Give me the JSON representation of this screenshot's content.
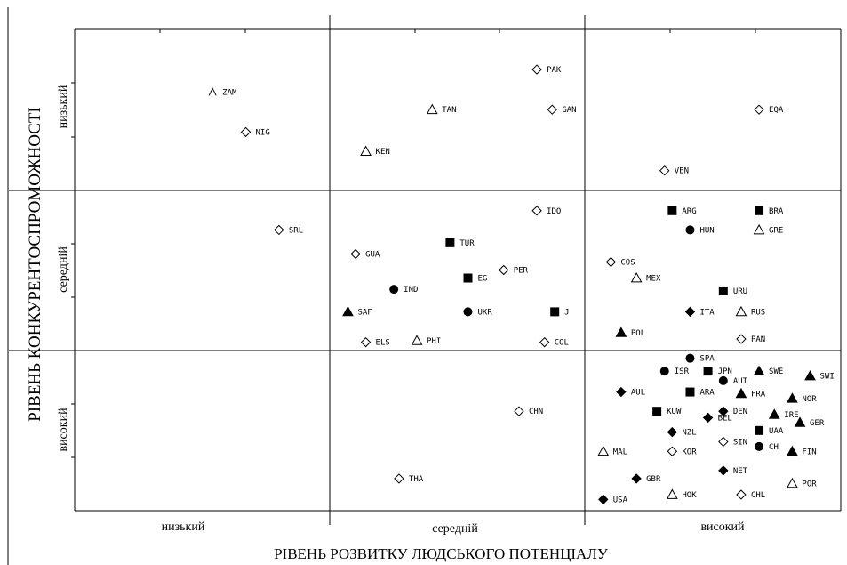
{
  "chart_data": {
    "type": "scatter",
    "xlabel": "РІВЕНЬ РОЗВИТКУ ЛЮДСЬКОГО ПОТЕНЦІАЛУ",
    "ylabel": "РІВЕНЬ КОНКУРЕНТОСПРОМОЖНОСТІ",
    "x_categories": [
      "низький",
      "середній",
      "високий"
    ],
    "y_categories": [
      "низький",
      "середній",
      "високий"
    ],
    "grid": true,
    "colors": {
      "ink": "#000000",
      "background": "#ffffff"
    },
    "marker_legend": {
      "diamond_open": "open-diamond",
      "triangle_open": "open-triangle",
      "square": "filled-square",
      "circle": "filled-circle",
      "triangle": "filled-triangle",
      "diamond": "filled-diamond"
    },
    "points": [
      {
        "label": "ZAM",
        "x": 0.54,
        "y": 2.61,
        "marker": "caret"
      },
      {
        "label": "NIG",
        "x": 0.67,
        "y": 2.36,
        "marker": "diamond_open"
      },
      {
        "label": "PAK",
        "x": 1.81,
        "y": 2.75,
        "marker": "diamond_open"
      },
      {
        "label": "TAN",
        "x": 1.4,
        "y": 2.5,
        "marker": "triangle_open"
      },
      {
        "label": "GAN",
        "x": 1.87,
        "y": 2.5,
        "marker": "diamond_open"
      },
      {
        "label": "EQA",
        "x": 2.68,
        "y": 2.5,
        "marker": "diamond_open"
      },
      {
        "label": "KEN",
        "x": 1.14,
        "y": 2.24,
        "marker": "triangle_open"
      },
      {
        "label": "VEN",
        "x": 2.31,
        "y": 2.12,
        "marker": "diamond_open"
      },
      {
        "label": "SRL",
        "x": 0.8,
        "y": 1.75,
        "marker": "diamond_open"
      },
      {
        "label": "IDO",
        "x": 1.81,
        "y": 1.87,
        "marker": "diamond_open"
      },
      {
        "label": "ARG",
        "x": 2.34,
        "y": 1.87,
        "marker": "square"
      },
      {
        "label": "BRA",
        "x": 2.68,
        "y": 1.87,
        "marker": "square"
      },
      {
        "label": "HUN",
        "x": 2.41,
        "y": 1.75,
        "marker": "circle"
      },
      {
        "label": "GRE",
        "x": 2.68,
        "y": 1.75,
        "marker": "triangle_open"
      },
      {
        "label": "TUR",
        "x": 1.47,
        "y": 1.67,
        "marker": "square"
      },
      {
        "label": "GUA",
        "x": 1.1,
        "y": 1.6,
        "marker": "diamond_open"
      },
      {
        "label": "COS",
        "x": 2.1,
        "y": 1.55,
        "marker": "diamond_open"
      },
      {
        "label": "PER",
        "x": 1.68,
        "y": 1.5,
        "marker": "diamond_open"
      },
      {
        "label": "EG",
        "x": 1.54,
        "y": 1.45,
        "marker": "square"
      },
      {
        "label": "MEX",
        "x": 2.2,
        "y": 1.45,
        "marker": "triangle_open"
      },
      {
        "label": "IND",
        "x": 1.25,
        "y": 1.38,
        "marker": "circle"
      },
      {
        "label": "URU",
        "x": 2.54,
        "y": 1.37,
        "marker": "square"
      },
      {
        "label": "SAF",
        "x": 1.07,
        "y": 1.24,
        "marker": "triangle"
      },
      {
        "label": "UKR",
        "x": 1.54,
        "y": 1.24,
        "marker": "circle"
      },
      {
        "label": "J",
        "x": 1.88,
        "y": 1.24,
        "marker": "square"
      },
      {
        "label": "ITA",
        "x": 2.41,
        "y": 1.24,
        "marker": "diamond"
      },
      {
        "label": "RUS",
        "x": 2.61,
        "y": 1.24,
        "marker": "triangle_open"
      },
      {
        "label": "POL",
        "x": 2.14,
        "y": 1.11,
        "marker": "triangle"
      },
      {
        "label": "ELS",
        "x": 1.14,
        "y": 1.05,
        "marker": "diamond_open"
      },
      {
        "label": "PHI",
        "x": 1.34,
        "y": 1.06,
        "marker": "triangle_open"
      },
      {
        "label": "COL",
        "x": 1.84,
        "y": 1.05,
        "marker": "diamond_open"
      },
      {
        "label": "PAN",
        "x": 2.61,
        "y": 1.07,
        "marker": "diamond_open"
      },
      {
        "label": "SPA",
        "x": 2.41,
        "y": 0.95,
        "marker": "circle"
      },
      {
        "label": "ISR",
        "x": 2.31,
        "y": 0.87,
        "marker": "circle"
      },
      {
        "label": "JPN",
        "x": 2.48,
        "y": 0.87,
        "marker": "square"
      },
      {
        "label": "SWE",
        "x": 2.68,
        "y": 0.87,
        "marker": "triangle"
      },
      {
        "label": "SWI",
        "x": 2.88,
        "y": 0.84,
        "marker": "triangle"
      },
      {
        "label": "AUT",
        "x": 2.54,
        "y": 0.81,
        "marker": "circle"
      },
      {
        "label": "AUL",
        "x": 2.14,
        "y": 0.74,
        "marker": "diamond"
      },
      {
        "label": "ARA",
        "x": 2.41,
        "y": 0.74,
        "marker": "square"
      },
      {
        "label": "FRA",
        "x": 2.61,
        "y": 0.73,
        "marker": "triangle"
      },
      {
        "label": "NOR",
        "x": 2.81,
        "y": 0.7,
        "marker": "triangle"
      },
      {
        "label": "CHN",
        "x": 1.74,
        "y": 0.62,
        "marker": "diamond_open"
      },
      {
        "label": "KUW",
        "x": 2.28,
        "y": 0.62,
        "marker": "square"
      },
      {
        "label": "DEN",
        "x": 2.54,
        "y": 0.62,
        "marker": "diamond"
      },
      {
        "label": "IRE",
        "x": 2.74,
        "y": 0.6,
        "marker": "triangle"
      },
      {
        "label": "BEL",
        "x": 2.48,
        "y": 0.58,
        "marker": "diamond"
      },
      {
        "label": "GER",
        "x": 2.84,
        "y": 0.55,
        "marker": "triangle"
      },
      {
        "label": "NZL",
        "x": 2.34,
        "y": 0.49,
        "marker": "diamond"
      },
      {
        "label": "UAA",
        "x": 2.68,
        "y": 0.5,
        "marker": "square"
      },
      {
        "label": "SIN",
        "x": 2.54,
        "y": 0.43,
        "marker": "diamond_open"
      },
      {
        "label": "CH",
        "x": 2.68,
        "y": 0.4,
        "marker": "circle"
      },
      {
        "label": "FIN",
        "x": 2.81,
        "y": 0.37,
        "marker": "triangle"
      },
      {
        "label": "MAL",
        "x": 2.07,
        "y": 0.37,
        "marker": "triangle_open"
      },
      {
        "label": "KOR",
        "x": 2.34,
        "y": 0.37,
        "marker": "diamond_open"
      },
      {
        "label": "NET",
        "x": 2.54,
        "y": 0.25,
        "marker": "diamond"
      },
      {
        "label": "THA",
        "x": 1.27,
        "y": 0.2,
        "marker": "diamond_open"
      },
      {
        "label": "GBR",
        "x": 2.2,
        "y": 0.2,
        "marker": "diamond"
      },
      {
        "label": "POR",
        "x": 2.81,
        "y": 0.17,
        "marker": "triangle_open"
      },
      {
        "label": "HOK",
        "x": 2.34,
        "y": 0.1,
        "marker": "triangle_open"
      },
      {
        "label": "CHL",
        "x": 2.61,
        "y": 0.1,
        "marker": "diamond_open"
      },
      {
        "label": "USA",
        "x": 2.07,
        "y": 0.07,
        "marker": "diamond"
      }
    ]
  }
}
